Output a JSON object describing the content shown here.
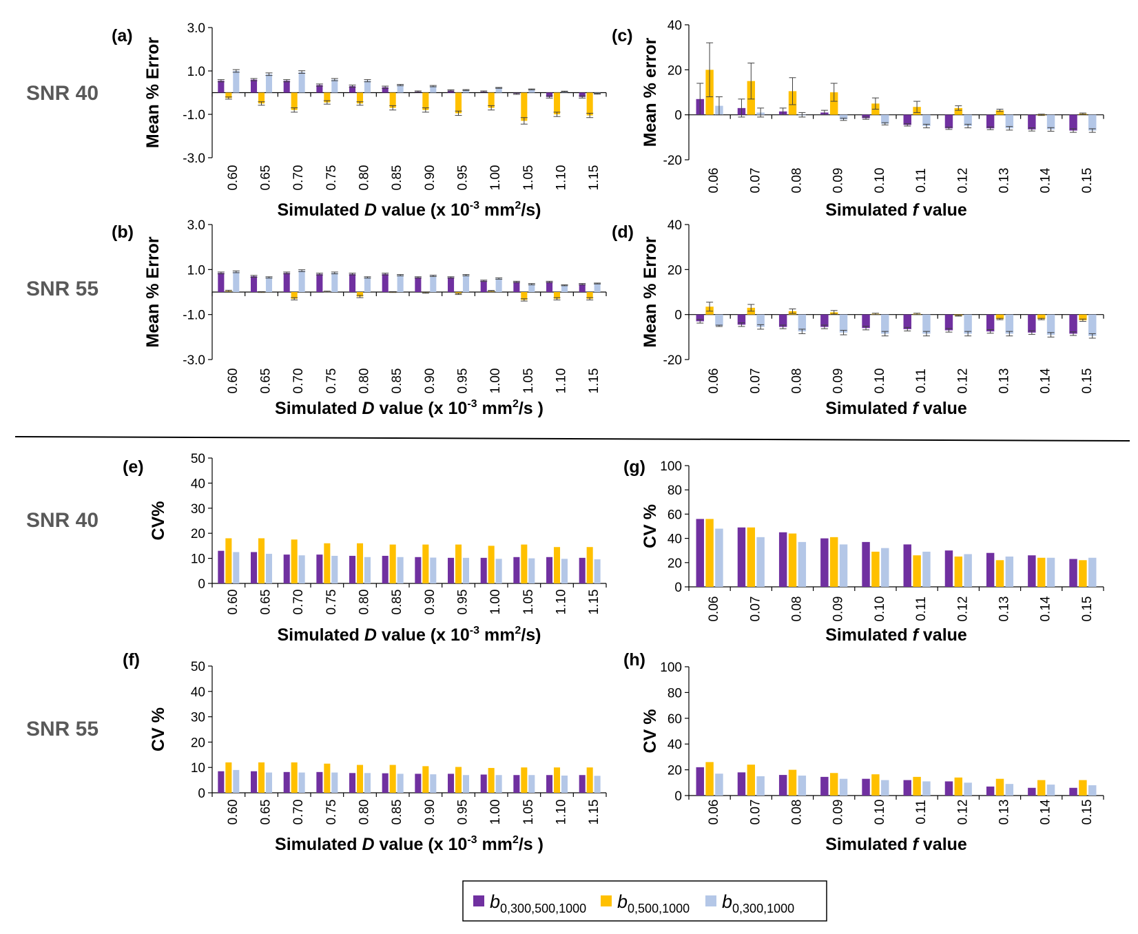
{
  "colors": {
    "series1": "#7030A0",
    "series2": "#FFC000",
    "series3": "#B4C7E7"
  },
  "row_labels": {
    "top_snr40": "SNR 40",
    "top_snr55": "SNR 55",
    "bottom_snr40": "SNR 40",
    "bottom_snr55": "SNR 55"
  },
  "legend": {
    "items": [
      {
        "base": "b",
        "sub": "0,300,500,1000"
      },
      {
        "base": "b",
        "sub": "0,500,1000"
      },
      {
        "base": "b",
        "sub": "0,300,1000"
      }
    ]
  },
  "chart_data": [
    {
      "id": "a",
      "label": "(a)",
      "type": "bar",
      "ylabel": "Mean % Error",
      "xlabel": {
        "pre": "Simulated ",
        "var": "D",
        "post": " value (x 10",
        "sup": "-3",
        "post2": " mm",
        "sup2": "2",
        "post3": "/s)"
      },
      "ylim": [
        -3,
        3
      ],
      "yticks": [
        -3,
        -1,
        1,
        3
      ],
      "ytick_labels": [
        "-3.0",
        "-1.0",
        "1.0",
        "3.0"
      ],
      "categories": [
        "0.60",
        "0.65",
        "0.70",
        "0.75",
        "0.80",
        "0.85",
        "0.90",
        "0.95",
        "1.00",
        "1.05",
        "1.10",
        "1.15"
      ],
      "series": [
        {
          "name": "b0,300,500,1000",
          "values": [
            0.55,
            0.6,
            0.55,
            0.35,
            0.3,
            0.25,
            0.05,
            0.1,
            0.05,
            -0.05,
            -0.2,
            -0.2
          ],
          "errors": [
            0.05,
            0.05,
            0.05,
            0.05,
            0.05,
            0.05,
            0.03,
            0.03,
            0.03,
            0.03,
            0.05,
            0.05
          ]
        },
        {
          "name": "b0,500,1000",
          "values": [
            -0.25,
            -0.5,
            -0.8,
            -0.45,
            -0.5,
            -0.7,
            -0.8,
            -0.95,
            -0.7,
            -1.3,
            -1.0,
            -1.05
          ],
          "errors": [
            0.05,
            0.08,
            0.1,
            0.08,
            0.08,
            0.1,
            0.1,
            0.1,
            0.1,
            0.15,
            0.1,
            0.1
          ]
        },
        {
          "name": "b0,300,1000",
          "values": [
            1.0,
            0.85,
            0.95,
            0.6,
            0.55,
            0.35,
            0.3,
            0.12,
            0.22,
            0.15,
            0.05,
            -0.05
          ],
          "errors": [
            0.06,
            0.06,
            0.06,
            0.05,
            0.05,
            0.03,
            0.03,
            0.02,
            0.02,
            0.02,
            0.02,
            0.02
          ]
        }
      ]
    },
    {
      "id": "b",
      "label": "(b)",
      "type": "bar",
      "ylabel": "Mean % Error",
      "xlabel": {
        "pre": "Simulated ",
        "var": "D",
        "post": " value (x 10",
        "sup": "-3",
        "post2": " mm",
        "sup2": "2",
        "post3": "/s )"
      },
      "ylim": [
        -3,
        3
      ],
      "yticks": [
        -3,
        -1,
        1,
        3
      ],
      "ytick_labels": [
        "-3.0",
        "-1.0",
        "1.0",
        "3.0"
      ],
      "categories": [
        "0.60",
        "0.65",
        "0.70",
        "0.75",
        "0.80",
        "0.85",
        "0.90",
        "0.95",
        "1.00",
        "1.05",
        "1.10",
        "1.15"
      ],
      "series": [
        {
          "name": "b0,300,500,1000",
          "values": [
            0.85,
            0.7,
            0.85,
            0.8,
            0.8,
            0.8,
            0.65,
            0.65,
            0.5,
            0.45,
            0.45,
            0.35
          ],
          "errors": [
            0.04,
            0.04,
            0.04,
            0.04,
            0.04,
            0.04,
            0.03,
            0.03,
            0.03,
            0.03,
            0.03,
            0.03
          ]
        },
        {
          "name": "b0,500,1000",
          "values": [
            0.05,
            0.0,
            -0.3,
            0.02,
            -0.2,
            0.0,
            -0.03,
            -0.08,
            0.05,
            -0.35,
            -0.3,
            -0.3
          ],
          "errors": [
            0.03,
            0.02,
            0.05,
            0.02,
            0.05,
            0.02,
            0.02,
            0.03,
            0.02,
            0.05,
            0.05,
            0.05
          ]
        },
        {
          "name": "b0,300,1000",
          "values": [
            0.9,
            0.65,
            0.95,
            0.85,
            0.65,
            0.75,
            0.72,
            0.75,
            0.6,
            0.35,
            0.3,
            0.38
          ],
          "errors": [
            0.04,
            0.03,
            0.04,
            0.04,
            0.03,
            0.03,
            0.03,
            0.03,
            0.03,
            0.03,
            0.02,
            0.02
          ]
        }
      ]
    },
    {
      "id": "c",
      "label": "(c)",
      "type": "bar",
      "ylabel": "Mean % error",
      "xlabel": {
        "pre": "Simulated ",
        "var": "f",
        "post": " value"
      },
      "ylim": [
        -20,
        40
      ],
      "yticks": [
        -20,
        0,
        20,
        40
      ],
      "ytick_labels": [
        "-20",
        "0",
        "20",
        "40"
      ],
      "categories": [
        "0.06",
        "0.07",
        "0.08",
        "0.09",
        "0.10",
        "0.11",
        "0.12",
        "0.13",
        "0.14",
        "0.15"
      ],
      "series": [
        {
          "name": "b0,300,500,1000",
          "values": [
            7,
            3,
            1.5,
            1,
            -1.5,
            -4.5,
            -6,
            -6,
            -6.5,
            -7
          ],
          "errors": [
            7,
            4,
            1.5,
            1,
            0.5,
            0.5,
            0.5,
            0.6,
            0.7,
            0.8
          ]
        },
        {
          "name": "b0,500,1000",
          "values": [
            20,
            15,
            10.5,
            10,
            5,
            3.5,
            3,
            2,
            0,
            0.5
          ],
          "errors": [
            12,
            8,
            6,
            4,
            2.5,
            2.5,
            1,
            0.5,
            0.3,
            0.3
          ]
        },
        {
          "name": "b0,300,1000",
          "values": [
            4,
            1,
            0,
            -2,
            -4,
            -5,
            -5,
            -6,
            -6.5,
            -7
          ],
          "errors": [
            4,
            2,
            1,
            0.5,
            0.5,
            0.8,
            0.8,
            0.8,
            0.8,
            0.8
          ]
        }
      ]
    },
    {
      "id": "d",
      "label": "(d)",
      "type": "bar",
      "ylabel": "Mean % Error",
      "xlabel": {
        "pre": "Simulated ",
        "var": "f",
        "post": " value"
      },
      "ylim": [
        -20,
        40
      ],
      "yticks": [
        -20,
        0,
        20,
        40
      ],
      "ytick_labels": [
        "-20",
        "0",
        "20",
        "40"
      ],
      "categories": [
        "0.06",
        "0.07",
        "0.08",
        "0.09",
        "0.10",
        "0.11",
        "0.12",
        "0.13",
        "0.14",
        "0.15"
      ],
      "series": [
        {
          "name": "b0,300,500,1000",
          "values": [
            -3,
            -4.5,
            -5.5,
            -5.5,
            -6,
            -6.5,
            -7,
            -7.5,
            -8,
            -8.5
          ],
          "errors": [
            0.8,
            0.8,
            0.8,
            0.8,
            0.8,
            0.8,
            0.8,
            0.8,
            0.8,
            0.8
          ]
        },
        {
          "name": "b0,500,1000",
          "values": [
            3.5,
            3,
            1.5,
            1,
            0.3,
            0.3,
            -0.5,
            -2,
            -2,
            -2.5
          ],
          "errors": [
            2,
            1.5,
            1,
            0.8,
            0.3,
            0.3,
            0.2,
            0.3,
            0.3,
            0.5
          ]
        },
        {
          "name": "b0,300,1000",
          "values": [
            -5,
            -5.5,
            -7.5,
            -8,
            -8.5,
            -8.5,
            -8.5,
            -8.5,
            -9,
            -9.5
          ],
          "errors": [
            0.3,
            1,
            1,
            1,
            1,
            1,
            1,
            1,
            1,
            1
          ]
        }
      ]
    },
    {
      "id": "e",
      "label": "(e)",
      "type": "bar",
      "ylabel": "CV%",
      "xlabel": {
        "pre": "Simulated ",
        "var": "D",
        "post": " value (x 10",
        "sup": "-3",
        "post2": " mm",
        "sup2": "2",
        "post3": "/s)"
      },
      "ylim": [
        0,
        50
      ],
      "yticks": [
        0,
        10,
        20,
        30,
        40,
        50
      ],
      "ytick_labels": [
        "0",
        "10",
        "20",
        "30",
        "40",
        "50"
      ],
      "categories": [
        "0.60",
        "0.65",
        "0.70",
        "0.75",
        "0.80",
        "0.85",
        "0.90",
        "0.95",
        "1.00",
        "1.05",
        "1.10",
        "1.15"
      ],
      "series": [
        {
          "name": "b0,300,500,1000",
          "values": [
            13,
            12.5,
            11.5,
            11.5,
            11,
            11,
            10.5,
            10.2,
            10.2,
            10.5,
            10.5,
            10.2
          ]
        },
        {
          "name": "b0,500,1000",
          "values": [
            18,
            18,
            17.5,
            16,
            16,
            15.5,
            15.5,
            15.5,
            15,
            15.5,
            14.5,
            14.5
          ]
        },
        {
          "name": "b0,300,1000",
          "values": [
            12.5,
            11.8,
            11.2,
            11,
            10.5,
            10.5,
            10.3,
            10.2,
            9.8,
            10,
            9.8,
            9.6
          ]
        }
      ]
    },
    {
      "id": "f",
      "label": "(f)",
      "type": "bar",
      "ylabel": "CV %",
      "xlabel": {
        "pre": "Simulated ",
        "var": "D",
        "post": " value (x 10",
        "sup": "-3",
        "post2": " mm",
        "sup2": "2",
        "post3": "/s )"
      },
      "ylim": [
        0,
        50
      ],
      "yticks": [
        0,
        10,
        20,
        30,
        40,
        50
      ],
      "ytick_labels": [
        "0",
        "10",
        "20",
        "30",
        "40",
        "50"
      ],
      "categories": [
        "0.60",
        "0.65",
        "0.70",
        "0.75",
        "0.80",
        "0.85",
        "0.90",
        "0.95",
        "1.00",
        "1.05",
        "1.10",
        "1.15"
      ],
      "series": [
        {
          "name": "b0,300,500,1000",
          "values": [
            8.5,
            8.5,
            8.2,
            8.2,
            7.8,
            7.7,
            7.5,
            7.5,
            7.2,
            7.0,
            7.0,
            7.0
          ]
        },
        {
          "name": "b0,500,1000",
          "values": [
            12,
            12,
            12,
            11.5,
            11,
            11,
            10.5,
            10.2,
            9.8,
            10,
            10,
            10
          ]
        },
        {
          "name": "b0,300,1000",
          "values": [
            9,
            8,
            8,
            8,
            7.8,
            7.5,
            7.3,
            7,
            7,
            7,
            6.8,
            6.7
          ]
        }
      ]
    },
    {
      "id": "g",
      "label": "(g)",
      "type": "bar",
      "ylabel": "CV %",
      "xlabel": {
        "pre": "Simulated ",
        "var": "f",
        "post": " value"
      },
      "ylim": [
        0,
        100
      ],
      "yticks": [
        0,
        20,
        40,
        60,
        80,
        100
      ],
      "ytick_labels": [
        "0",
        "20",
        "40",
        "60",
        "80",
        "100"
      ],
      "categories": [
        "0.06",
        "0.07",
        "0.08",
        "0.09",
        "0.10",
        "0.11",
        "0.12",
        "0.13",
        "0.14",
        "0.15"
      ],
      "series": [
        {
          "name": "b0,300,500,1000",
          "values": [
            56,
            49,
            45,
            40,
            37,
            35,
            30,
            28,
            26,
            23
          ]
        },
        {
          "name": "b0,500,1000",
          "values": [
            56,
            49,
            44,
            41,
            29,
            26,
            25,
            22,
            24,
            22
          ]
        },
        {
          "name": "b0,300,1000",
          "values": [
            48,
            41,
            37,
            35,
            32,
            29,
            27,
            25,
            24,
            24
          ]
        }
      ]
    },
    {
      "id": "h",
      "label": "(h)",
      "type": "bar",
      "ylabel": "CV %",
      "xlabel": {
        "pre": "Simulated ",
        "var": "f",
        "post": " value"
      },
      "ylim": [
        0,
        100
      ],
      "yticks": [
        0,
        20,
        40,
        60,
        80,
        100
      ],
      "ytick_labels": [
        "0",
        "20",
        "40",
        "60",
        "80",
        "100"
      ],
      "categories": [
        "0.06",
        "0.07",
        "0.08",
        "0.09",
        "0.10",
        "0.11",
        "0.12",
        "0.13",
        "0.14",
        "0.15"
      ],
      "series": [
        {
          "name": "b0,300,500,1000",
          "values": [
            22,
            18,
            16,
            14.5,
            13,
            12,
            11,
            7,
            6,
            6
          ]
        },
        {
          "name": "b0,500,1000",
          "values": [
            26,
            24,
            20,
            17.5,
            16.5,
            14.5,
            14,
            13,
            12,
            12
          ]
        },
        {
          "name": "b0,300,1000",
          "values": [
            17,
            15,
            15.5,
            13,
            12,
            11,
            10,
            9,
            8.5,
            8
          ]
        }
      ]
    }
  ]
}
